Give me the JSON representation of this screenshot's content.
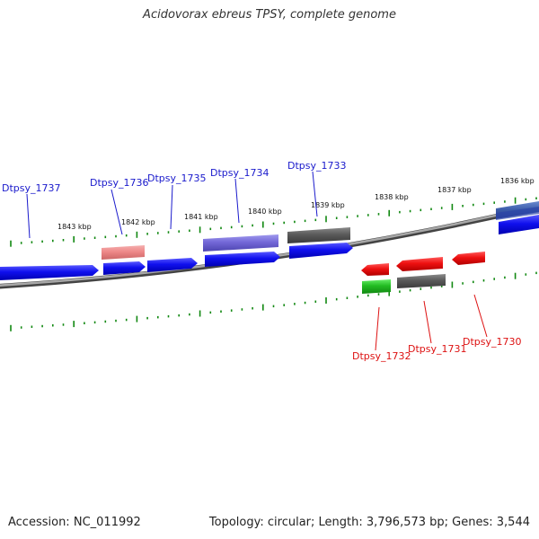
{
  "title": "Acidovorax ebreus TPSY, complete genome",
  "footer": {
    "accession_label": "Accession:",
    "accession_value": "NC_011992",
    "topology_text": "Topology: circular; Length: 3,796,573 bp; Genes: 3,544"
  },
  "scale_labels": [
    "1843 kbp",
    "1842 kbp",
    "1841 kbp",
    "1840 kbp",
    "1839 kbp",
    "1838 kbp",
    "1837 kbp",
    "1836 kbp"
  ],
  "top_genes": [
    "Dtpsy_1737",
    "Dtpsy_1736",
    "Dtpsy_1735",
    "Dtpsy_1734",
    "Dtpsy_1733"
  ],
  "bottom_genes": [
    "Dtpsy_1732",
    "Dtpsy_1731",
    "Dtpsy_1730"
  ],
  "colors": {
    "forward_strand": "#1010ee",
    "reverse_strand": "#ee1010",
    "backbone": "#888888",
    "tick": "#118811",
    "label_top": "#1a1acc",
    "label_bottom": "#dd1111"
  }
}
